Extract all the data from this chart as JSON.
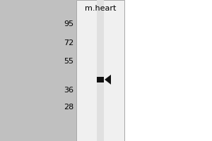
{
  "background_color": "#ffffff",
  "outer_bg_color": "#b8b8b8",
  "panel_bg_color": "#ffffff",
  "lane_color": "#d4d4d4",
  "band_color": "#111111",
  "arrow_color": "#111111",
  "title": "m.heart",
  "title_fontsize": 8,
  "mw_markers": [
    95,
    72,
    55,
    36,
    28
  ],
  "band_mw": 42,
  "mw_log_min": 2.944,
  "mw_log_max": 4.7,
  "label_fontsize": 8
}
